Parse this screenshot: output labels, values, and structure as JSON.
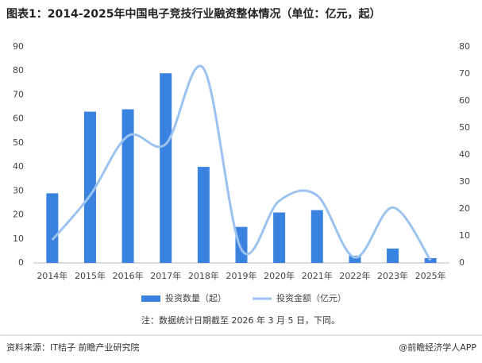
{
  "chart_data": {
    "type": "bar-line",
    "title": "图表1：2014-2025年中国电子竞技行业融资整体情况（单位：亿元，起）",
    "categories": [
      "2014年",
      "2015年",
      "2016年",
      "2017年",
      "2018年",
      "2019年",
      "2020年",
      "2021年",
      "2022年",
      "2023年",
      "2025年"
    ],
    "series": [
      {
        "name": "投资数量（起）",
        "type": "bar",
        "color": "#3a82e0",
        "values": [
          29,
          63,
          64,
          79,
          40,
          15,
          21,
          22,
          3,
          6,
          2
        ]
      },
      {
        "name": "投资金额（亿元）",
        "type": "line",
        "axis": "y2",
        "color": "#9cc3f0",
        "values": [
          8.5,
          25,
          47,
          44,
          72,
          5,
          23,
          25,
          2,
          20.5,
          1
        ]
      }
    ],
    "ylim": [
      0,
      90
    ],
    "yticks": [
      0,
      10,
      20,
      30,
      40,
      50,
      60,
      70,
      80,
      90
    ],
    "y2lim": [
      0,
      80
    ],
    "y2ticks": [
      0,
      10,
      20,
      30,
      40,
      50,
      60,
      70,
      80
    ],
    "note": "注：数据统计日期截至 2026 年 3 月 5 日，下同。",
    "source": "资料来源：IT桔子 前瞻产业研究院",
    "credit": "@前瞻经济学人APP"
  }
}
